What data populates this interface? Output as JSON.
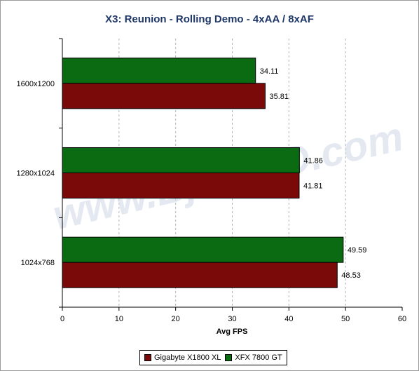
{
  "chart_data": {
    "type": "bar",
    "orientation": "horizontal",
    "title": "X3: Reunion - Rolling Demo - 4xAA / 8xAF",
    "xlabel": "Avg FPS",
    "ylabel": "",
    "xlim": [
      0,
      60
    ],
    "xticks": [
      "0",
      "10",
      "20",
      "30",
      "40",
      "50",
      "60"
    ],
    "grid": true,
    "legend_position": "bottom",
    "categories": [
      "1600x1200",
      "1280x1024",
      "1024x768"
    ],
    "series": [
      {
        "name": "XFX 7800 GT",
        "color": "#0b6b12",
        "values": [
          34.11,
          41.86,
          49.59
        ],
        "labels": [
          "34.11",
          "41.86",
          "49.59"
        ]
      },
      {
        "name": "Gigabyte X1800 XL",
        "color": "#7a0a0a",
        "values": [
          35.81,
          41.81,
          48.53
        ],
        "labels": [
          "35.81",
          "41.81",
          "48.53"
        ]
      }
    ],
    "legend_order": [
      1,
      0
    ],
    "watermark": "www.Bjorn3D.com"
  }
}
